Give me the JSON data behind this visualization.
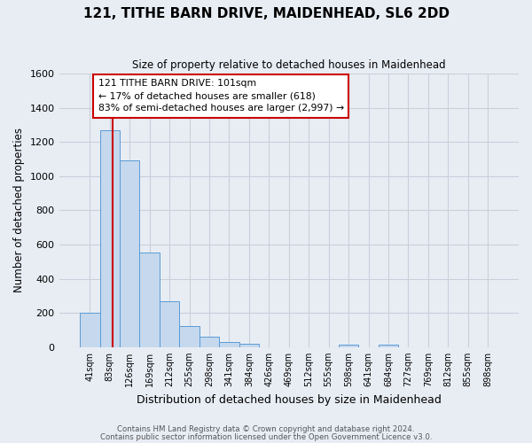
{
  "title": "121, TITHE BARN DRIVE, MAIDENHEAD, SL6 2DD",
  "subtitle": "Size of property relative to detached houses in Maidenhead",
  "xlabel": "Distribution of detached houses by size in Maidenhead",
  "ylabel": "Number of detached properties",
  "bar_labels": [
    "41sqm",
    "83sqm",
    "126sqm",
    "169sqm",
    "212sqm",
    "255sqm",
    "298sqm",
    "341sqm",
    "384sqm",
    "426sqm",
    "469sqm",
    "512sqm",
    "555sqm",
    "598sqm",
    "641sqm",
    "684sqm",
    "727sqm",
    "769sqm",
    "812sqm",
    "855sqm",
    "898sqm"
  ],
  "bar_values": [
    200,
    1270,
    1095,
    555,
    270,
    125,
    60,
    28,
    20,
    0,
    0,
    0,
    0,
    14,
    0,
    14,
    0,
    0,
    0,
    0,
    0
  ],
  "bar_color": "#c5d8ed",
  "bar_edge_color": "#5b9bd5",
  "grid_color": "#c8d0dc",
  "background_color": "#e8edf4",
  "vline_color": "#cc0000",
  "vline_x_data": 1.15,
  "annotation_text": "121 TITHE BARN DRIVE: 101sqm\n← 17% of detached houses are smaller (618)\n83% of semi-detached houses are larger (2,997) →",
  "annotation_box_color": "#ffffff",
  "annotation_box_edge": "#cc0000",
  "ylim": [
    0,
    1600
  ],
  "yticks": [
    0,
    200,
    400,
    600,
    800,
    1000,
    1200,
    1400,
    1600
  ],
  "footer_line1": "Contains HM Land Registry data © Crown copyright and database right 2024.",
  "footer_line2": "Contains public sector information licensed under the Open Government Licence v3.0."
}
